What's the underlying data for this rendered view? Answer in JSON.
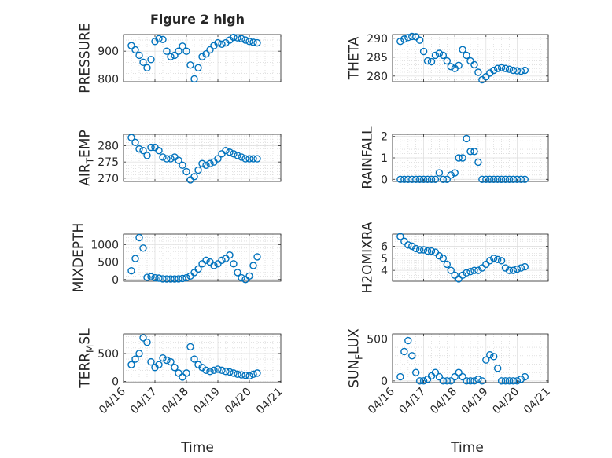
{
  "figure": {
    "title": "Figure 2 high",
    "xlabel": "Time"
  },
  "x_ticks": [
    "04/16",
    "04/17",
    "04/18",
    "04/19",
    "04/20",
    "04/21"
  ],
  "marker_color": "#0072BD",
  "chart_data": [
    {
      "type": "scatter",
      "ylabel": "PRESSURE",
      "ylabel_parts": [
        "PRESSURE"
      ],
      "ylim": [
        790,
        960
      ],
      "yticks": [
        800,
        900
      ],
      "ytick_labels": [
        "800",
        "900"
      ],
      "grid": true,
      "xaxis_labels": false,
      "x": [
        "04/16 06:00",
        "04/16 09:00",
        "04/16 12:00",
        "04/16 15:00",
        "04/16 18:00",
        "04/16 21:00",
        "04/17 00:00",
        "04/17 03:00",
        "04/17 06:00",
        "04/17 09:00",
        "04/17 12:00",
        "04/17 15:00",
        "04/17 18:00",
        "04/17 21:00",
        "04/18 00:00",
        "04/18 03:00",
        "04/18 06:00",
        "04/18 09:00",
        "04/18 12:00",
        "04/18 15:00",
        "04/18 18:00",
        "04/18 21:00",
        "04/19 00:00",
        "04/19 03:00",
        "04/19 06:00",
        "04/19 09:00",
        "04/19 12:00",
        "04/19 15:00",
        "04/19 18:00",
        "04/19 21:00",
        "04/20 00:00",
        "04/20 03:00",
        "04/20 06:00"
      ],
      "y": [
        920,
        905,
        885,
        860,
        840,
        870,
        935,
        945,
        942,
        900,
        880,
        885,
        900,
        918,
        900,
        850,
        800,
        840,
        880,
        890,
        905,
        920,
        930,
        925,
        930,
        940,
        950,
        948,
        945,
        940,
        935,
        932,
        930
      ]
    },
    {
      "type": "scatter",
      "ylabel": "THETA",
      "ylabel_parts": [
        "THETA"
      ],
      "ylim": [
        278.5,
        291
      ],
      "yticks": [
        280,
        285,
        290
      ],
      "ytick_labels": [
        "280",
        "285",
        "290"
      ],
      "grid": true,
      "xaxis_labels": false,
      "x": [
        "04/16 06:00",
        "04/16 09:00",
        "04/16 12:00",
        "04/16 15:00",
        "04/16 18:00",
        "04/16 21:00",
        "04/17 00:00",
        "04/17 03:00",
        "04/17 06:00",
        "04/17 09:00",
        "04/17 12:00",
        "04/17 15:00",
        "04/17 18:00",
        "04/17 21:00",
        "04/18 00:00",
        "04/18 03:00",
        "04/18 06:00",
        "04/18 09:00",
        "04/18 12:00",
        "04/18 15:00",
        "04/18 18:00",
        "04/18 21:00",
        "04/19 00:00",
        "04/19 03:00",
        "04/19 06:00",
        "04/19 09:00",
        "04/19 12:00",
        "04/19 15:00",
        "04/19 18:00",
        "04/19 21:00",
        "04/20 00:00",
        "04/20 03:00",
        "04/20 06:00"
      ],
      "y": [
        289.2,
        289.8,
        290.2,
        290.5,
        290.4,
        289.5,
        286.5,
        284.0,
        283.8,
        285.5,
        286.0,
        285.5,
        284.0,
        282.5,
        282.0,
        282.8,
        287.0,
        285.5,
        284.0,
        283.0,
        281.0,
        279.0,
        279.8,
        280.8,
        281.5,
        282.0,
        282.2,
        282.0,
        281.8,
        281.5,
        281.4,
        281.3,
        281.5
      ]
    },
    {
      "type": "scatter",
      "ylabel": "AIR_TEMP",
      "ylabel_parts": [
        "AIR",
        "T",
        "EMP"
      ],
      "ylim": [
        269,
        283.5
      ],
      "yticks": [
        270,
        275,
        280
      ],
      "ytick_labels": [
        "270",
        "275",
        "280"
      ],
      "grid": true,
      "xaxis_labels": false,
      "x": [
        "04/16 06:00",
        "04/16 09:00",
        "04/16 12:00",
        "04/16 15:00",
        "04/16 18:00",
        "04/16 21:00",
        "04/17 00:00",
        "04/17 03:00",
        "04/17 06:00",
        "04/17 09:00",
        "04/17 12:00",
        "04/17 15:00",
        "04/17 18:00",
        "04/17 21:00",
        "04/18 00:00",
        "04/18 03:00",
        "04/18 06:00",
        "04/18 09:00",
        "04/18 12:00",
        "04/18 15:00",
        "04/18 18:00",
        "04/18 21:00",
        "04/19 00:00",
        "04/19 03:00",
        "04/19 06:00",
        "04/19 09:00",
        "04/19 12:00",
        "04/19 15:00",
        "04/19 18:00",
        "04/19 21:00",
        "04/20 00:00",
        "04/20 03:00",
        "04/20 06:00"
      ],
      "y": [
        282.5,
        281.0,
        279.0,
        278.5,
        277.0,
        279.5,
        279.5,
        278.5,
        276.5,
        276.0,
        276.0,
        276.5,
        275.5,
        274.0,
        272.0,
        269.5,
        270.5,
        272.5,
        274.5,
        274.0,
        274.5,
        275.0,
        276.0,
        277.5,
        278.5,
        278.0,
        277.5,
        277.0,
        276.5,
        276.0,
        276.0,
        276.0,
        276.0
      ]
    },
    {
      "type": "scatter",
      "ylabel": "RAINFALL",
      "ylabel_parts": [
        "RAINFALL"
      ],
      "ylim": [
        -0.1,
        2.1
      ],
      "yticks": [
        0,
        1,
        2
      ],
      "ytick_labels": [
        "0",
        "1",
        "2"
      ],
      "grid": true,
      "xaxis_labels": false,
      "x": [
        "04/16 06:00",
        "04/16 09:00",
        "04/16 12:00",
        "04/16 15:00",
        "04/16 18:00",
        "04/16 21:00",
        "04/17 00:00",
        "04/17 03:00",
        "04/17 06:00",
        "04/17 09:00",
        "04/17 12:00",
        "04/17 15:00",
        "04/17 18:00",
        "04/17 21:00",
        "04/18 00:00",
        "04/18 03:00",
        "04/18 06:00",
        "04/18 09:00",
        "04/18 12:00",
        "04/18 15:00",
        "04/18 18:00",
        "04/18 21:00",
        "04/19 00:00",
        "04/19 03:00",
        "04/19 06:00",
        "04/19 09:00",
        "04/19 12:00",
        "04/19 15:00",
        "04/19 18:00",
        "04/19 21:00",
        "04/20 00:00",
        "04/20 03:00",
        "04/20 06:00"
      ],
      "y": [
        0,
        0,
        0,
        0,
        0,
        0,
        0,
        0,
        0,
        0,
        0.3,
        0,
        0,
        0.2,
        0.3,
        1.0,
        1.0,
        1.9,
        1.3,
        1.3,
        0.8,
        0,
        0,
        0,
        0,
        0,
        0,
        0,
        0,
        0,
        0,
        0,
        0
      ]
    },
    {
      "type": "scatter",
      "ylabel": "MIXDEPTH",
      "ylabel_parts": [
        "MIXDEPTH"
      ],
      "ylim": [
        -50,
        1300
      ],
      "yticks": [
        0,
        500,
        1000
      ],
      "ytick_labels": [
        "0",
        "500",
        "1000"
      ],
      "grid": true,
      "xaxis_labels": false,
      "x": [
        "04/16 06:00",
        "04/16 09:00",
        "04/16 12:00",
        "04/16 15:00",
        "04/16 18:00",
        "04/16 21:00",
        "04/17 00:00",
        "04/17 03:00",
        "04/17 06:00",
        "04/17 09:00",
        "04/17 12:00",
        "04/17 15:00",
        "04/17 18:00",
        "04/17 21:00",
        "04/18 00:00",
        "04/18 03:00",
        "04/18 06:00",
        "04/18 09:00",
        "04/18 12:00",
        "04/18 15:00",
        "04/18 18:00",
        "04/18 21:00",
        "04/19 00:00",
        "04/19 03:00",
        "04/19 06:00",
        "04/19 09:00",
        "04/19 12:00",
        "04/19 15:00",
        "04/19 18:00",
        "04/19 21:00",
        "04/20 00:00",
        "04/20 03:00",
        "04/20 06:00"
      ],
      "y": [
        250,
        600,
        1200,
        900,
        60,
        80,
        50,
        40,
        20,
        15,
        15,
        15,
        20,
        30,
        50,
        100,
        200,
        300,
        450,
        550,
        500,
        400,
        450,
        550,
        600,
        700,
        450,
        200,
        50,
        0,
        100,
        400,
        650
      ]
    },
    {
      "type": "scatter",
      "ylabel": "H2OMIXRA",
      "ylabel_parts": [
        "H2OMIXRA"
      ],
      "ylim": [
        3.1,
        7.0
      ],
      "yticks": [
        4,
        5,
        6
      ],
      "ytick_labels": [
        "4",
        "5",
        "6"
      ],
      "grid": true,
      "xaxis_labels": false,
      "x": [
        "04/16 06:00",
        "04/16 09:00",
        "04/16 12:00",
        "04/16 15:00",
        "04/16 18:00",
        "04/16 21:00",
        "04/17 00:00",
        "04/17 03:00",
        "04/17 06:00",
        "04/17 09:00",
        "04/17 12:00",
        "04/17 15:00",
        "04/17 18:00",
        "04/17 21:00",
        "04/18 00:00",
        "04/18 03:00",
        "04/18 06:00",
        "04/18 09:00",
        "04/18 12:00",
        "04/18 15:00",
        "04/18 18:00",
        "04/18 21:00",
        "04/19 00:00",
        "04/19 03:00",
        "04/19 06:00",
        "04/19 09:00",
        "04/19 12:00",
        "04/19 15:00",
        "04/19 18:00",
        "04/19 21:00",
        "04/20 00:00",
        "04/20 03:00",
        "04/20 06:00"
      ],
      "y": [
        6.8,
        6.4,
        6.1,
        6.0,
        5.8,
        5.7,
        5.7,
        5.6,
        5.6,
        5.5,
        5.2,
        5.0,
        4.5,
        4.0,
        3.6,
        3.3,
        3.6,
        3.8,
        3.9,
        4.0,
        4.0,
        4.2,
        4.5,
        4.8,
        5.0,
        4.9,
        4.8,
        4.2,
        4.0,
        4.0,
        4.1,
        4.2,
        4.3
      ]
    },
    {
      "type": "scatter",
      "ylabel": "TERR_MSL",
      "ylabel_parts": [
        "TERR",
        "M",
        "SL"
      ],
      "ylim": [
        -20,
        850
      ],
      "yticks": [
        0,
        500
      ],
      "ytick_labels": [
        "0",
        "500"
      ],
      "grid": true,
      "xaxis_labels": true,
      "x": [
        "04/16 06:00",
        "04/16 09:00",
        "04/16 12:00",
        "04/16 15:00",
        "04/16 18:00",
        "04/16 21:00",
        "04/17 00:00",
        "04/17 03:00",
        "04/17 06:00",
        "04/17 09:00",
        "04/17 12:00",
        "04/17 15:00",
        "04/17 18:00",
        "04/17 21:00",
        "04/18 00:00",
        "04/18 03:00",
        "04/18 06:00",
        "04/18 09:00",
        "04/18 12:00",
        "04/18 15:00",
        "04/18 18:00",
        "04/18 21:00",
        "04/19 00:00",
        "04/19 03:00",
        "04/19 06:00",
        "04/19 09:00",
        "04/19 12:00",
        "04/19 15:00",
        "04/19 18:00",
        "04/19 21:00",
        "04/20 00:00",
        "04/20 03:00",
        "04/20 06:00"
      ],
      "y": [
        300,
        400,
        500,
        780,
        700,
        350,
        250,
        300,
        420,
        380,
        350,
        250,
        150,
        80,
        150,
        620,
        400,
        300,
        250,
        200,
        180,
        200,
        220,
        200,
        180,
        170,
        150,
        130,
        120,
        110,
        100,
        130,
        150
      ]
    },
    {
      "type": "scatter",
      "ylabel": "SUN_FLUX",
      "ylabel_parts": [
        "SUN",
        "F",
        "LUX"
      ],
      "ylim": [
        -20,
        560
      ],
      "yticks": [
        0,
        500
      ],
      "ytick_labels": [
        "0",
        "500"
      ],
      "grid": true,
      "xaxis_labels": true,
      "x": [
        "04/16 06:00",
        "04/16 09:00",
        "04/16 12:00",
        "04/16 15:00",
        "04/16 18:00",
        "04/16 21:00",
        "04/17 00:00",
        "04/17 03:00",
        "04/17 06:00",
        "04/17 09:00",
        "04/17 12:00",
        "04/17 15:00",
        "04/17 18:00",
        "04/17 21:00",
        "04/18 00:00",
        "04/18 03:00",
        "04/18 06:00",
        "04/18 09:00",
        "04/18 12:00",
        "04/18 15:00",
        "04/18 18:00",
        "04/18 21:00",
        "04/19 00:00",
        "04/19 03:00",
        "04/19 06:00",
        "04/19 09:00",
        "04/19 12:00",
        "04/19 15:00",
        "04/19 18:00",
        "04/19 21:00",
        "04/20 00:00",
        "04/20 03:00",
        "04/20 06:00"
      ],
      "y": [
        50,
        350,
        480,
        300,
        100,
        0,
        0,
        20,
        60,
        100,
        50,
        0,
        0,
        0,
        50,
        100,
        50,
        0,
        0,
        0,
        20,
        0,
        250,
        310,
        290,
        150,
        0,
        0,
        0,
        0,
        0,
        20,
        50
      ]
    }
  ]
}
